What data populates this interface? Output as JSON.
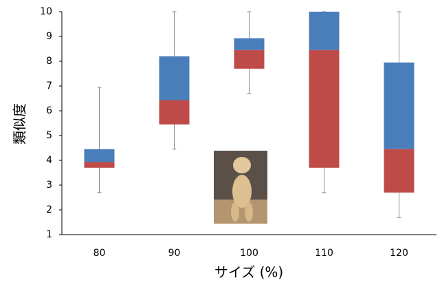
{
  "chart_data": {
    "type": "box",
    "x_label": "サイズ (%)",
    "y_label": "類似度",
    "categories": [
      "80",
      "90",
      "100",
      "110",
      "120"
    ],
    "max": [
      6.95,
      10,
      10,
      10,
      10
    ],
    "q3": [
      4.45,
      8.2,
      8.93,
      10,
      7.95
    ],
    "median": [
      3.93,
      6.43,
      8.45,
      8.45,
      4.45
    ],
    "q1": [
      3.7,
      5.45,
      7.7,
      3.7,
      2.7
    ],
    "min": [
      2.7,
      4.45,
      6.7,
      2.7,
      1.68
    ],
    "upper_color": "#4a7ebb",
    "lower_color": "#be4b48",
    "ylim": [
      1,
      10
    ],
    "yticks": [
      1,
      2,
      3,
      4,
      5,
      6,
      7,
      8,
      9,
      10
    ],
    "grid": false
  }
}
